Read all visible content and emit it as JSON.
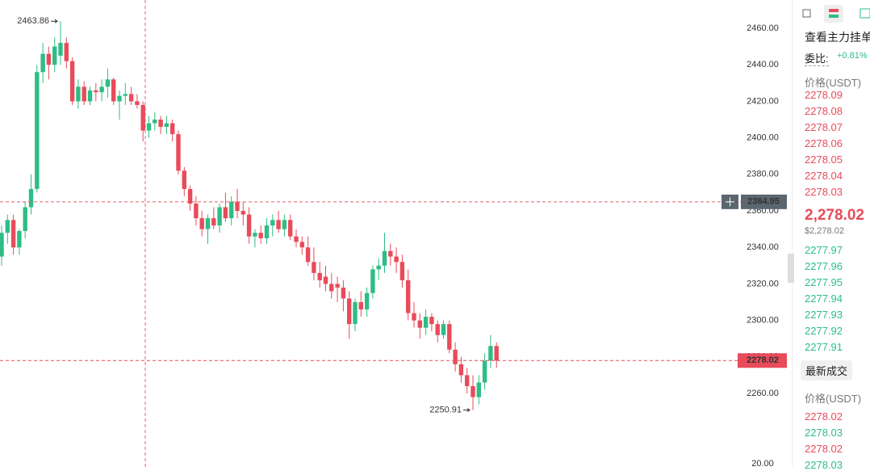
{
  "chart_data": {
    "type": "candlestick",
    "up_color": "#2ebd85",
    "down_color": "#e84b5a",
    "ylim": [
      2219.3,
      2475.5
    ],
    "yticks": [
      {
        "value": 2460,
        "label": "2460.00"
      },
      {
        "value": 2440,
        "label": "2440.00"
      },
      {
        "value": 2420,
        "label": "2420.00"
      },
      {
        "value": 2400,
        "label": "2400.00"
      },
      {
        "value": 2380,
        "label": "2380.00"
      },
      {
        "value": 2360,
        "label": "2360.00"
      },
      {
        "value": 2340,
        "label": "2340.00"
      },
      {
        "value": 2320,
        "label": "2320.00"
      },
      {
        "value": 2300,
        "label": "2300.00"
      },
      {
        "value": 2280,
        "label": "2280.00"
      },
      {
        "value": 2260,
        "label": "2260.00"
      }
    ],
    "volume_ticks": [
      {
        "value": 20,
        "label": "20.00"
      }
    ],
    "max_label": 2463.86,
    "min_label": 2250.91,
    "crosshair_price": 2364.95,
    "last_price": {
      "value": 2278.02,
      "label": "2278.02"
    },
    "candles": [
      [
        2335,
        2352,
        2330,
        2348
      ],
      [
        2348,
        2358,
        2342,
        2355
      ],
      [
        2355,
        2358,
        2336,
        2340
      ],
      [
        2340,
        2350,
        2336,
        2349
      ],
      [
        2349,
        2365,
        2345,
        2362
      ],
      [
        2362,
        2380,
        2358,
        2372
      ],
      [
        2372,
        2440,
        2370,
        2436
      ],
      [
        2436,
        2452,
        2430,
        2446
      ],
      [
        2446,
        2450,
        2432,
        2440
      ],
      [
        2440,
        2455,
        2436,
        2450
      ],
      [
        2445,
        2463.86,
        2440,
        2452
      ],
      [
        2452,
        2455,
        2438,
        2442
      ],
      [
        2442,
        2444,
        2418,
        2420
      ],
      [
        2420,
        2432,
        2416,
        2428
      ],
      [
        2428,
        2431,
        2418,
        2420
      ],
      [
        2420,
        2428,
        2418,
        2426
      ],
      [
        2426,
        2430,
        2420,
        2425
      ],
      [
        2425,
        2432,
        2420,
        2428
      ],
      [
        2428,
        2438,
        2422,
        2432
      ],
      [
        2432,
        2433,
        2418,
        2420
      ],
      [
        2420,
        2426,
        2410,
        2423
      ],
      [
        2423,
        2430,
        2418,
        2424
      ],
      [
        2424,
        2428,
        2418,
        2420
      ],
      [
        2420,
        2424,
        2416,
        2418
      ],
      [
        2418,
        2420,
        2398,
        2404
      ],
      [
        2404,
        2412,
        2400,
        2408
      ],
      [
        2408,
        2414,
        2404,
        2410
      ],
      [
        2410,
        2412,
        2402,
        2406
      ],
      [
        2406,
        2412,
        2402,
        2408
      ],
      [
        2408,
        2410,
        2398,
        2402
      ],
      [
        2402,
        2404,
        2380,
        2382
      ],
      [
        2382,
        2384,
        2368,
        2372
      ],
      [
        2372,
        2374,
        2360,
        2364
      ],
      [
        2364,
        2368,
        2352,
        2356
      ],
      [
        2356,
        2360,
        2346,
        2350
      ],
      [
        2350,
        2358,
        2342,
        2356
      ],
      [
        2356,
        2362,
        2350,
        2352
      ],
      [
        2352,
        2364,
        2348,
        2362
      ],
      [
        2362,
        2370,
        2354,
        2356
      ],
      [
        2356,
        2368,
        2352,
        2365
      ],
      [
        2365,
        2372,
        2356,
        2360
      ],
      [
        2360,
        2365,
        2352,
        2358
      ],
      [
        2358,
        2362,
        2342,
        2346
      ],
      [
        2346,
        2350,
        2340,
        2348
      ],
      [
        2348,
        2352,
        2342,
        2345
      ],
      [
        2345,
        2356,
        2342,
        2352
      ],
      [
        2352,
        2358,
        2346,
        2355
      ],
      [
        2355,
        2360,
        2348,
        2350
      ],
      [
        2350,
        2358,
        2346,
        2355
      ],
      [
        2355,
        2358,
        2344,
        2346
      ],
      [
        2346,
        2350,
        2340,
        2343
      ],
      [
        2343,
        2346,
        2336,
        2340
      ],
      [
        2340,
        2346,
        2330,
        2332
      ],
      [
        2332,
        2340,
        2322,
        2326
      ],
      [
        2326,
        2332,
        2318,
        2322
      ],
      [
        2324,
        2330,
        2316,
        2320
      ],
      [
        2320,
        2326,
        2312,
        2316
      ],
      [
        2320,
        2324,
        2310,
        2318
      ],
      [
        2318,
        2322,
        2305,
        2312
      ],
      [
        2312,
        2316,
        2290,
        2298
      ],
      [
        2298,
        2312,
        2294,
        2310
      ],
      [
        2310,
        2316,
        2302,
        2306
      ],
      [
        2306,
        2318,
        2302,
        2315
      ],
      [
        2315,
        2330,
        2312,
        2328
      ],
      [
        2328,
        2334,
        2322,
        2330
      ],
      [
        2330,
        2348,
        2326,
        2338
      ],
      [
        2338,
        2342,
        2330,
        2335
      ],
      [
        2335,
        2340,
        2326,
        2332
      ],
      [
        2332,
        2336,
        2318,
        2322
      ],
      [
        2322,
        2328,
        2300,
        2304
      ],
      [
        2304,
        2310,
        2296,
        2300
      ],
      [
        2300,
        2304,
        2290,
        2296
      ],
      [
        2296,
        2306,
        2292,
        2302
      ],
      [
        2302,
        2304,
        2294,
        2298
      ],
      [
        2298,
        2300,
        2288,
        2292
      ],
      [
        2292,
        2300,
        2290,
        2298
      ],
      [
        2298,
        2300,
        2282,
        2284
      ],
      [
        2284,
        2288,
        2272,
        2276
      ],
      [
        2276,
        2280,
        2266,
        2270
      ],
      [
        2270,
        2274,
        2260,
        2264
      ],
      [
        2264,
        2270,
        2250.91,
        2258
      ],
      [
        2258,
        2270,
        2254,
        2266
      ],
      [
        2266,
        2282,
        2262,
        2278
      ],
      [
        2278,
        2292,
        2274,
        2286
      ],
      [
        2286,
        2288,
        2274,
        2278.02
      ]
    ]
  },
  "side_panel": {
    "title": "查看主力挂单",
    "ratio_label": "委比:",
    "ratio_value": "+0.81%",
    "price_header": "价格(USDT)",
    "asks": [
      "2278.09",
      "2278.08",
      "2278.07",
      "2278.06",
      "2278.05",
      "2278.04",
      "2278.03"
    ],
    "last_price": "2,278.02",
    "last_price_usd": "$2,278.02",
    "bids": [
      "2277.97",
      "2277.96",
      "2277.95",
      "2277.94",
      "2277.93",
      "2277.92",
      "2277.91"
    ],
    "trades_button": "最新成交",
    "trades_header": "价格(USDT)",
    "trades": [
      {
        "price": "2278.02",
        "side": "sell"
      },
      {
        "price": "2278.03",
        "side": "buy"
      },
      {
        "price": "2278.02",
        "side": "sell"
      },
      {
        "price": "2278.03",
        "side": "buy"
      }
    ]
  }
}
